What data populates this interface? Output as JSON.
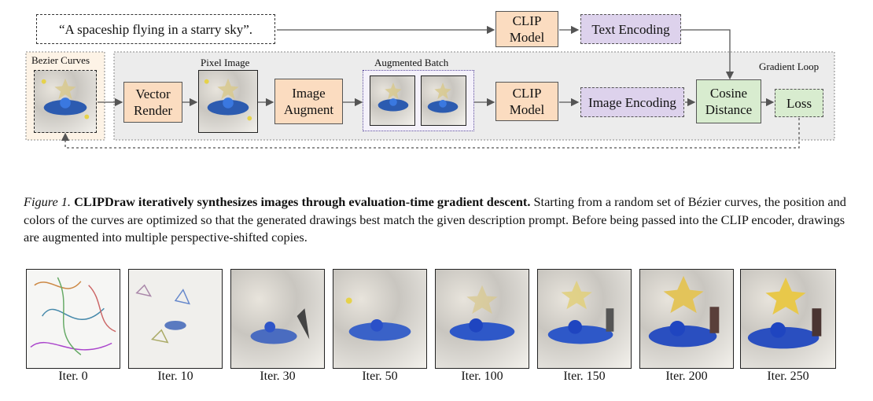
{
  "diagram": {
    "prompt": "“A spaceship flying in a starry sky”.",
    "clip_model_top": "CLIP\nModel",
    "text_encoding": "Text Encoding",
    "bezier_curves": "Bezier Curves",
    "gradient_loop": "Gradient Loop",
    "vector_render": "Vector\nRender",
    "pixel_image": "Pixel Image",
    "image_augment": "Image\nAugment",
    "augmented_batch": "Augmented Batch",
    "clip_model_bottom": "CLIP\nModel",
    "image_encoding": "Image Encoding",
    "cosine_distance": "Cosine\nDistance",
    "loss": "Loss"
  },
  "caption": {
    "figure_label": "Figure 1.",
    "bold_text": "CLIPDraw iteratively synthesizes images through evaluation-time gradient descent.",
    "body_text": "Starting from a random set of Bézier curves, the position and colors of the curves are optimized so that the generated drawings best match the given description prompt. Before being passed into the CLIP encoder, drawings are augmented into multiple perspective-shifted copies."
  },
  "iterations": [
    "Iter. 0",
    "Iter. 10",
    "Iter. 30",
    "Iter. 50",
    "Iter. 100",
    "Iter. 150",
    "Iter. 200",
    "Iter. 250"
  ],
  "colors": {
    "orange_box": "#fbdcc0",
    "purple_box": "#ddd2ec",
    "green_box": "#d8eccf",
    "loop_bg": "#ececec",
    "bezier_bg": "#fdf3e6"
  }
}
